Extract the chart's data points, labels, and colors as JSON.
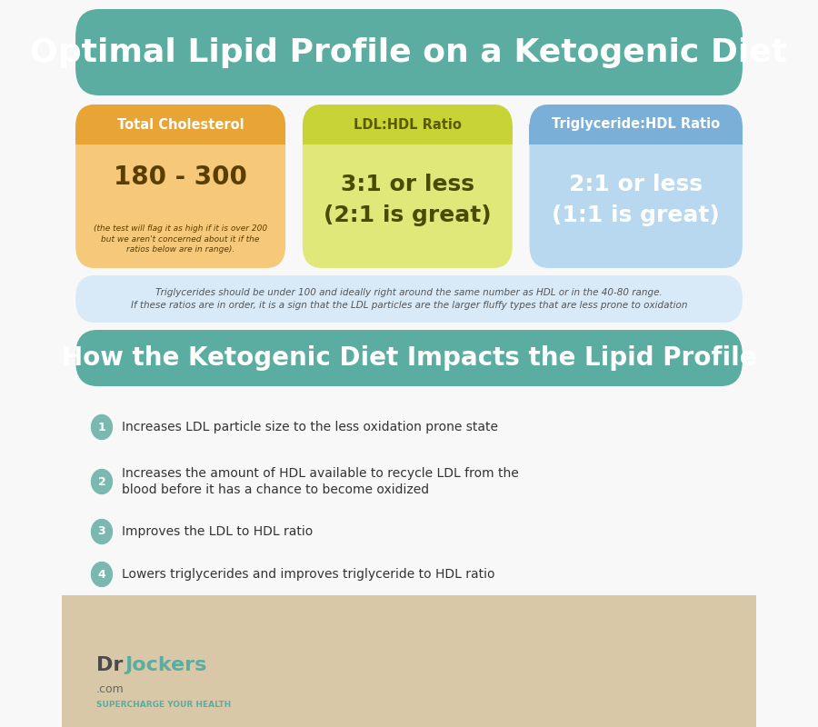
{
  "title": "Optimal Lipid Profile on a Ketogenic Diet",
  "title_bg": "#5aada0",
  "title_color": "#ffffff",
  "title_fontsize": 26,
  "box1_title": "Total Cholesterol",
  "box1_title_color": "#ffffff",
  "box1_bg": "#f5c87a",
  "box1_header_bg": "#e8a535",
  "box1_value": "180 - 300",
  "box1_note": "(the test will flag it as high if it is over 200\nbut we aren't concerned about it if the\nratios below are in range).",
  "box1_value_color": "#5a3e00",
  "box1_note_color": "#5a3e00",
  "box2_title": "LDL:HDL Ratio",
  "box2_title_color": "#5a5a00",
  "box2_bg": "#e0e87a",
  "box2_header_bg": "#c8d435",
  "box2_value": "3:1 or less\n(2:1 is great)",
  "box2_value_color": "#4a4a00",
  "box3_title": "Triglyceride:HDL Ratio",
  "box3_title_color": "#ffffff",
  "box3_bg": "#b8d8f0",
  "box3_header_bg": "#7ab0d8",
  "box3_value": "2:1 or less\n(1:1 is great)",
  "box3_value_color": "#ffffff",
  "note_bg": "#d8eaf8",
  "note_text": "Triglycerides should be under 100 and ideally right around the same number as HDL or in the 40-80 range.\nIf these ratios are in order, it is a sign that the LDL particles are the larger fluffy types that are less prone to oxidation",
  "note_text_color": "#555555",
  "section2_title": "How the Ketogenic Diet Impacts the Lipid Profile",
  "section2_bg": "#5aada0",
  "section2_title_color": "#ffffff",
  "bullet_bg": "#7ab8b0",
  "bullet_text_color": "#ffffff",
  "bullet_items": [
    "Increases LDL particle size to the less oxidation prone state",
    "Increases the amount of HDL available to recycle LDL from the\nblood before it has a chance to become oxidized",
    "Improves the LDL to HDL ratio",
    "Lowers triglycerides and improves triglyceride to HDL ratio"
  ],
  "item_text_color": "#333333",
  "logo_text": "DrJockers",
  "logo_sub": ".com\nSUPERCHARGE YOUR HEALTH",
  "background_color": "#f8f8f8"
}
